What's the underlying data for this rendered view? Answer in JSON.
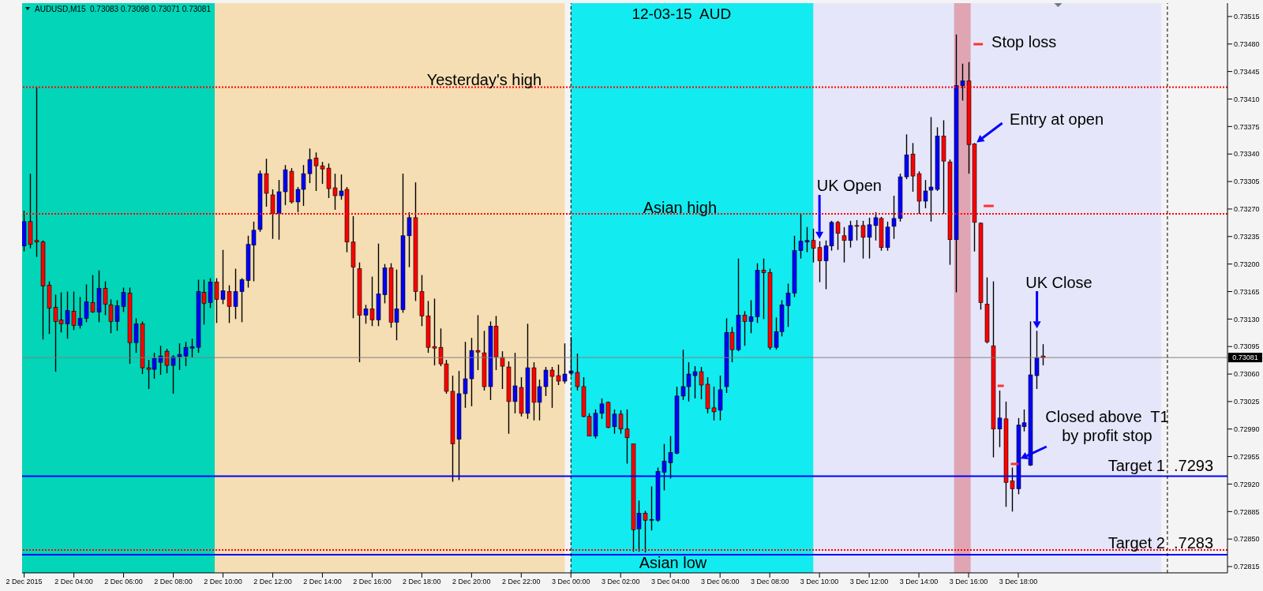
{
  "chart_data": {
    "type": "candlestick",
    "title": "12-03-15  AUD",
    "subtitle": "AUDUSD,M15  0.73083 0.73098 0.73071 0.73081",
    "x": [
      "2015-12-02T02:00",
      "2015-12-02T02:15",
      "2015-12-02T02:30",
      "2015-12-02T02:45",
      "2015-12-02T03:00",
      "2015-12-02T03:15",
      "2015-12-02T03:30",
      "2015-12-02T03:45",
      "2015-12-02T04:00",
      "2015-12-02T04:15",
      "2015-12-02T04:30",
      "2015-12-02T04:45",
      "2015-12-02T05:00",
      "2015-12-02T05:15",
      "2015-12-02T05:30",
      "2015-12-02T05:45",
      "2015-12-02T06:00",
      "2015-12-02T06:15",
      "2015-12-02T06:30",
      "2015-12-02T06:45",
      "2015-12-02T07:00",
      "2015-12-02T07:15",
      "2015-12-02T07:30",
      "2015-12-02T07:45",
      "2015-12-02T08:00",
      "2015-12-02T08:15",
      "2015-12-02T08:30",
      "2015-12-02T08:45",
      "2015-12-02T09:00",
      "2015-12-02T09:15",
      "2015-12-02T09:30",
      "2015-12-02T09:45",
      "2015-12-02T10:00",
      "2015-12-02T10:15",
      "2015-12-02T10:30",
      "2015-12-02T10:45",
      "2015-12-02T11:00",
      "2015-12-02T11:15",
      "2015-12-02T11:30",
      "2015-12-02T11:45",
      "2015-12-02T12:00",
      "2015-12-02T12:15",
      "2015-12-02T12:30",
      "2015-12-02T12:45",
      "2015-12-02T13:00",
      "2015-12-02T13:15",
      "2015-12-02T13:30",
      "2015-12-02T13:45",
      "2015-12-02T14:00",
      "2015-12-02T14:15",
      "2015-12-02T14:30",
      "2015-12-02T14:45",
      "2015-12-02T15:00",
      "2015-12-02T15:15",
      "2015-12-02T15:30",
      "2015-12-02T15:45",
      "2015-12-02T16:00",
      "2015-12-02T16:15",
      "2015-12-02T16:30",
      "2015-12-02T16:45",
      "2015-12-02T17:00",
      "2015-12-02T17:15",
      "2015-12-02T17:30",
      "2015-12-02T17:45",
      "2015-12-02T18:00",
      "2015-12-02T18:15",
      "2015-12-02T18:30",
      "2015-12-02T18:45",
      "2015-12-02T19:00",
      "2015-12-02T19:15",
      "2015-12-02T19:30",
      "2015-12-02T19:45",
      "2015-12-02T20:00",
      "2015-12-02T20:15",
      "2015-12-02T20:30",
      "2015-12-02T20:45",
      "2015-12-02T21:00",
      "2015-12-02T21:15",
      "2015-12-02T21:30",
      "2015-12-02T21:45",
      "2015-12-02T22:00",
      "2015-12-02T22:15",
      "2015-12-02T22:30",
      "2015-12-02T22:45",
      "2015-12-02T23:00",
      "2015-12-02T23:15",
      "2015-12-02T23:30",
      "2015-12-02T23:45",
      "2015-12-03T00:00",
      "2015-12-03T00:15",
      "2015-12-03T00:30",
      "2015-12-03T00:45",
      "2015-12-03T01:00",
      "2015-12-03T01:15",
      "2015-12-03T01:30",
      "2015-12-03T01:45",
      "2015-12-03T02:00",
      "2015-12-03T02:15",
      "2015-12-03T02:30",
      "2015-12-03T02:45",
      "2015-12-03T03:00",
      "2015-12-03T03:15",
      "2015-12-03T03:30",
      "2015-12-03T03:45",
      "2015-12-03T04:00",
      "2015-12-03T04:15",
      "2015-12-03T04:30",
      "2015-12-03T04:45",
      "2015-12-03T05:00",
      "2015-12-03T05:15",
      "2015-12-03T05:30",
      "2015-12-03T05:45",
      "2015-12-03T06:00",
      "2015-12-03T06:15",
      "2015-12-03T06:30",
      "2015-12-03T06:45",
      "2015-12-03T07:00",
      "2015-12-03T07:15",
      "2015-12-03T07:30",
      "2015-12-03T07:45",
      "2015-12-03T08:00",
      "2015-12-03T08:15",
      "2015-12-03T08:30",
      "2015-12-03T08:45",
      "2015-12-03T09:00",
      "2015-12-03T09:15",
      "2015-12-03T09:30",
      "2015-12-03T09:45",
      "2015-12-03T10:00",
      "2015-12-03T10:15",
      "2015-12-03T10:30",
      "2015-12-03T10:45",
      "2015-12-03T11:00",
      "2015-12-03T11:15",
      "2015-12-03T11:30",
      "2015-12-03T11:45",
      "2015-12-03T12:00",
      "2015-12-03T12:15",
      "2015-12-03T12:30",
      "2015-12-03T12:45",
      "2015-12-03T13:00",
      "2015-12-03T13:15",
      "2015-12-03T13:30",
      "2015-12-03T13:45",
      "2015-12-03T14:00",
      "2015-12-03T14:15",
      "2015-12-03T14:30",
      "2015-12-03T14:45",
      "2015-12-03T15:00",
      "2015-12-03T15:15",
      "2015-12-03T15:30",
      "2015-12-03T15:45",
      "2015-12-03T16:00",
      "2015-12-03T16:15",
      "2015-12-03T16:30",
      "2015-12-03T16:45",
      "2015-12-03T17:00",
      "2015-12-03T17:15",
      "2015-12-03T17:30",
      "2015-12-03T17:45",
      "2015-12-03T18:00",
      "2015-12-03T18:15",
      "2015-12-03T18:30",
      "2015-12-03T18:45",
      "2015-12-03T19:00"
    ],
    "ohlc": [
      [
        0.73223,
        0.73268,
        0.73216,
        0.73254
      ],
      [
        0.73254,
        0.73315,
        0.7322,
        0.73225
      ],
      [
        0.7323,
        0.73425,
        0.73209,
        0.73228
      ],
      [
        0.73228,
        0.7323,
        0.73104,
        0.73172
      ],
      [
        0.73173,
        0.73178,
        0.73111,
        0.73144
      ],
      [
        0.73145,
        0.73161,
        0.73063,
        0.73127
      ],
      [
        0.73129,
        0.73164,
        0.73113,
        0.73124
      ],
      [
        0.73124,
        0.73165,
        0.73105,
        0.73141
      ],
      [
        0.7314,
        0.73165,
        0.73116,
        0.73122
      ],
      [
        0.73122,
        0.73158,
        0.73118,
        0.73131
      ],
      [
        0.73131,
        0.73174,
        0.73126,
        0.73152
      ],
      [
        0.73151,
        0.73186,
        0.73138,
        0.73139
      ],
      [
        0.73139,
        0.73192,
        0.73126,
        0.73169
      ],
      [
        0.73169,
        0.73178,
        0.73135,
        0.73149
      ],
      [
        0.73148,
        0.73155,
        0.73112,
        0.73127
      ],
      [
        0.73127,
        0.73154,
        0.73115,
        0.73147
      ],
      [
        0.73146,
        0.7317,
        0.73139,
        0.73164
      ],
      [
        0.73163,
        0.7317,
        0.73073,
        0.731
      ],
      [
        0.731,
        0.73131,
        0.73087,
        0.73124
      ],
      [
        0.73124,
        0.73127,
        0.7306,
        0.73068
      ],
      [
        0.73068,
        0.73078,
        0.73041,
        0.73066
      ],
      [
        0.73066,
        0.73087,
        0.73054,
        0.7308
      ],
      [
        0.73075,
        0.73096,
        0.73059,
        0.73083
      ],
      [
        0.73089,
        0.73092,
        0.73061,
        0.73071
      ],
      [
        0.73071,
        0.73084,
        0.73035,
        0.73082
      ],
      [
        0.73082,
        0.73099,
        0.73065,
        0.73085
      ],
      [
        0.73083,
        0.73101,
        0.7307,
        0.73094
      ],
      [
        0.73093,
        0.73105,
        0.73081,
        0.73095
      ],
      [
        0.73094,
        0.7318,
        0.73087,
        0.73165
      ],
      [
        0.73164,
        0.7318,
        0.73123,
        0.7315
      ],
      [
        0.73151,
        0.73182,
        0.73144,
        0.73177
      ],
      [
        0.73177,
        0.73182,
        0.73125,
        0.73155
      ],
      [
        0.73155,
        0.73218,
        0.73149,
        0.73166
      ],
      [
        0.73165,
        0.73173,
        0.73125,
        0.73146
      ],
      [
        0.73146,
        0.73194,
        0.7313,
        0.73165
      ],
      [
        0.73165,
        0.73182,
        0.73126,
        0.7318
      ],
      [
        0.73179,
        0.73236,
        0.7317,
        0.73225
      ],
      [
        0.73224,
        0.73254,
        0.73178,
        0.73243
      ],
      [
        0.73244,
        0.73319,
        0.73241,
        0.73315
      ],
      [
        0.73315,
        0.73334,
        0.73273,
        0.7329
      ],
      [
        0.73288,
        0.73295,
        0.73232,
        0.73264
      ],
      [
        0.73264,
        0.73307,
        0.73231,
        0.73292
      ],
      [
        0.73292,
        0.73326,
        0.73275,
        0.7332
      ],
      [
        0.73318,
        0.73322,
        0.73277,
        0.73279
      ],
      [
        0.73279,
        0.73298,
        0.73266,
        0.73295
      ],
      [
        0.73295,
        0.73326,
        0.73274,
        0.73315
      ],
      [
        0.73315,
        0.73347,
        0.73303,
        0.73333
      ],
      [
        0.73335,
        0.73342,
        0.73293,
        0.73325
      ],
      [
        0.73325,
        0.7333,
        0.73302,
        0.73321
      ],
      [
        0.73322,
        0.73328,
        0.73284,
        0.73296
      ],
      [
        0.73297,
        0.73315,
        0.73269,
        0.73287
      ],
      [
        0.73287,
        0.73314,
        0.73282,
        0.73293
      ],
      [
        0.73295,
        0.73298,
        0.73215,
        0.73228
      ],
      [
        0.73228,
        0.73261,
        0.73131,
        0.73196
      ],
      [
        0.73194,
        0.73202,
        0.73075,
        0.73135
      ],
      [
        0.73135,
        0.73148,
        0.73124,
        0.73143
      ],
      [
        0.73143,
        0.73184,
        0.73121,
        0.73129
      ],
      [
        0.73129,
        0.73226,
        0.73121,
        0.73162
      ],
      [
        0.73161,
        0.732,
        0.7315,
        0.73195
      ],
      [
        0.73195,
        0.73201,
        0.73119,
        0.73126
      ],
      [
        0.73126,
        0.73193,
        0.73103,
        0.73143
      ],
      [
        0.73142,
        0.73315,
        0.73138,
        0.73236
      ],
      [
        0.73236,
        0.73266,
        0.73196,
        0.73259
      ],
      [
        0.73259,
        0.73304,
        0.73153,
        0.73165
      ],
      [
        0.73165,
        0.73186,
        0.73121,
        0.73134
      ],
      [
        0.73134,
        0.73153,
        0.73087,
        0.73094
      ],
      [
        0.73095,
        0.73156,
        0.73071,
        0.73093
      ],
      [
        0.73094,
        0.73118,
        0.7307,
        0.73073
      ],
      [
        0.73073,
        0.73078,
        0.73035,
        0.73038
      ],
      [
        0.73038,
        0.73058,
        0.72923,
        0.72971
      ],
      [
        0.72977,
        0.73064,
        0.72925,
        0.73035
      ],
      [
        0.73035,
        0.73101,
        0.73017,
        0.73054
      ],
      [
        0.73054,
        0.73106,
        0.73019,
        0.7309
      ],
      [
        0.7309,
        0.73135,
        0.73065,
        0.73088
      ],
      [
        0.73087,
        0.73115,
        0.73039,
        0.73044
      ],
      [
        0.73044,
        0.73127,
        0.73027,
        0.73121
      ],
      [
        0.73121,
        0.73134,
        0.73065,
        0.73082
      ],
      [
        0.73081,
        0.73089,
        0.73041,
        0.7307
      ],
      [
        0.73069,
        0.73076,
        0.72984,
        0.73025
      ],
      [
        0.73025,
        0.73087,
        0.7301,
        0.73045
      ],
      [
        0.73043,
        0.73056,
        0.73006,
        0.7301
      ],
      [
        0.7301,
        0.73124,
        0.73003,
        0.73068
      ],
      [
        0.73068,
        0.73075,
        0.73001,
        0.73024
      ],
      [
        0.73024,
        0.73053,
        0.73001,
        0.73044
      ],
      [
        0.73044,
        0.73069,
        0.73032,
        0.73065
      ],
      [
        0.73065,
        0.73069,
        0.73017,
        0.73057
      ],
      [
        0.73058,
        0.73072,
        0.73046,
        0.73051
      ],
      [
        0.73051,
        0.73099,
        0.73048,
        0.7306
      ],
      [
        0.73061,
        0.73107,
        0.73058,
        0.73064
      ],
      [
        0.73062,
        0.73086,
        0.73039,
        0.73044
      ],
      [
        0.73044,
        0.73056,
        0.73005,
        0.73006
      ],
      [
        0.73006,
        0.7301,
        0.72981,
        0.72981
      ],
      [
        0.72981,
        0.73015,
        0.72978,
        0.7301
      ],
      [
        0.7301,
        0.73029,
        0.73003,
        0.73022
      ],
      [
        0.73024,
        0.73025,
        0.72991,
        0.72992
      ],
      [
        0.72993,
        0.73015,
        0.72984,
        0.73009
      ],
      [
        0.73009,
        0.73014,
        0.72984,
        0.7299
      ],
      [
        0.7299,
        0.73015,
        0.72946,
        0.72979
      ],
      [
        0.72971,
        0.72971,
        0.72834,
        0.72862
      ],
      [
        0.72863,
        0.72899,
        0.72834,
        0.72883
      ],
      [
        0.72883,
        0.72886,
        0.72833,
        0.72874
      ],
      [
        0.72874,
        0.72917,
        0.72861,
        0.72875
      ],
      [
        0.72874,
        0.72941,
        0.72872,
        0.72936
      ],
      [
        0.72935,
        0.72971,
        0.72912,
        0.72949
      ],
      [
        0.72947,
        0.72981,
        0.72927,
        0.7296
      ],
      [
        0.72959,
        0.73044,
        0.72958,
        0.73032
      ],
      [
        0.73032,
        0.73091,
        0.73027,
        0.73044
      ],
      [
        0.73044,
        0.73075,
        0.73025,
        0.7306
      ],
      [
        0.73058,
        0.7307,
        0.73029,
        0.73063
      ],
      [
        0.73063,
        0.73069,
        0.73028,
        0.73046
      ],
      [
        0.73047,
        0.73056,
        0.7301,
        0.73016
      ],
      [
        0.73017,
        0.73044,
        0.73001,
        0.73012
      ],
      [
        0.73014,
        0.73058,
        0.73001,
        0.7304
      ],
      [
        0.73044,
        0.73131,
        0.73036,
        0.73113
      ],
      [
        0.73113,
        0.7312,
        0.73075,
        0.73091
      ],
      [
        0.73091,
        0.73207,
        0.73089,
        0.73135
      ],
      [
        0.73135,
        0.7314,
        0.73096,
        0.73127
      ],
      [
        0.73127,
        0.73154,
        0.73112,
        0.73133
      ],
      [
        0.73133,
        0.73201,
        0.73125,
        0.73192
      ],
      [
        0.73192,
        0.73207,
        0.7313,
        0.73189
      ],
      [
        0.73189,
        0.73194,
        0.73091,
        0.73094
      ],
      [
        0.73094,
        0.73132,
        0.73091,
        0.73114
      ],
      [
        0.73114,
        0.73154,
        0.73108,
        0.73148
      ],
      [
        0.73147,
        0.73175,
        0.7312,
        0.73163
      ],
      [
        0.73163,
        0.73236,
        0.73158,
        0.73217
      ],
      [
        0.73217,
        0.73264,
        0.73207,
        0.73229
      ],
      [
        0.73228,
        0.73247,
        0.73215,
        0.7323
      ],
      [
        0.7323,
        0.73245,
        0.73202,
        0.7322
      ],
      [
        0.73221,
        0.73229,
        0.73177,
        0.73204
      ],
      [
        0.73204,
        0.7323,
        0.73168,
        0.73223
      ],
      [
        0.73223,
        0.73255,
        0.73217,
        0.73253
      ],
      [
        0.73253,
        0.73255,
        0.73218,
        0.73239
      ],
      [
        0.73236,
        0.73247,
        0.73202,
        0.7323
      ],
      [
        0.7323,
        0.73255,
        0.73221,
        0.73249
      ],
      [
        0.73249,
        0.73256,
        0.7323,
        0.73248
      ],
      [
        0.73249,
        0.73255,
        0.73207,
        0.73234
      ],
      [
        0.73234,
        0.73259,
        0.73207,
        0.7325
      ],
      [
        0.73249,
        0.73266,
        0.7323,
        0.73259
      ],
      [
        0.73258,
        0.7326,
        0.73217,
        0.73221
      ],
      [
        0.73221,
        0.73254,
        0.73217,
        0.73247
      ],
      [
        0.73248,
        0.73287,
        0.73232,
        0.73258
      ],
      [
        0.73258,
        0.73315,
        0.73254,
        0.73311
      ],
      [
        0.73311,
        0.73365,
        0.73308,
        0.73339
      ],
      [
        0.7334,
        0.73354,
        0.73292,
        0.73312
      ],
      [
        0.73315,
        0.73318,
        0.73264,
        0.7328
      ],
      [
        0.7328,
        0.73307,
        0.73271,
        0.73293
      ],
      [
        0.73294,
        0.73387,
        0.73254,
        0.73298
      ],
      [
        0.73295,
        0.73374,
        0.73293,
        0.73363
      ],
      [
        0.73363,
        0.73383,
        0.73264,
        0.73331
      ],
      [
        0.7333,
        0.73333,
        0.73199,
        0.73231
      ],
      [
        0.73231,
        0.73492,
        0.73164,
        0.73427
      ],
      [
        0.73427,
        0.73455,
        0.73408,
        0.73433
      ],
      [
        0.73433,
        0.73457,
        0.73315,
        0.73352
      ],
      [
        0.73353,
        0.73354,
        0.73216,
        0.73253
      ],
      [
        0.73252,
        0.73253,
        0.73142,
        0.73151
      ],
      [
        0.73149,
        0.73183,
        0.73099,
        0.73101
      ],
      [
        0.73096,
        0.73178,
        0.72954,
        0.7299
      ],
      [
        0.7299,
        0.73039,
        0.72967,
        0.73004
      ],
      [
        0.73003,
        0.73025,
        0.72891,
        0.72922
      ],
      [
        0.72924,
        0.72941,
        0.72885,
        0.72914
      ],
      [
        0.72914,
        0.73004,
        0.72907,
        0.72995
      ],
      [
        0.72993,
        0.73015,
        0.72987,
        0.72998
      ],
      [
        0.72944,
        0.73127,
        0.72943,
        0.73059
      ],
      [
        0.73058,
        0.73115,
        0.73041,
        0.73081
      ],
      [
        0.73083,
        0.73098,
        0.73071,
        0.73081
      ]
    ],
    "colors": [
      "#0000ff",
      "#ff0000",
      "#ff0000",
      "#ff0000",
      "#ff0000",
      "#ff0000",
      "#ff0000",
      "#0000ff",
      "#ff0000",
      "#0000ff",
      "#0000ff",
      "#ff0000",
      "#0000ff",
      "#ff0000",
      "#ff0000",
      "#0000ff",
      "#0000ff",
      "#ff0000",
      "#0000ff",
      "#ff0000",
      "#ff0000",
      "#0000ff",
      "#0000ff",
      "#ff0000",
      "#0000ff",
      "#0000ff",
      "#0000ff",
      "#0000ff",
      "#0000ff",
      "#ff0000",
      "#0000ff",
      "#ff0000",
      "#0000ff",
      "#ff0000",
      "#0000ff",
      "#0000ff",
      "#0000ff",
      "#0000ff",
      "#0000ff",
      "#ff0000",
      "#ff0000",
      "#0000ff",
      "#0000ff",
      "#ff0000",
      "#0000ff",
      "#0000ff",
      "#0000ff",
      "#ff0000",
      "#ff0000",
      "#ff0000",
      "#ff0000",
      "#0000ff",
      "#ff0000",
      "#ff0000",
      "#ff0000",
      "#0000ff",
      "#ff0000",
      "#0000ff",
      "#0000ff",
      "#ff0000",
      "#0000ff",
      "#0000ff",
      "#0000ff",
      "#ff0000",
      "#ff0000",
      "#ff0000",
      "#ff0000",
      "#ff0000",
      "#ff0000",
      "#ff0000",
      "#0000ff",
      "#0000ff",
      "#0000ff",
      "#ff0000",
      "#ff0000",
      "#0000ff",
      "#ff0000",
      "#ff0000",
      "#ff0000",
      "#0000ff",
      "#ff0000",
      "#0000ff",
      "#ff0000",
      "#0000ff",
      "#0000ff",
      "#ff0000",
      "#ff0000",
      "#0000ff",
      "#0000ff",
      "#ff0000",
      "#ff0000",
      "#ff0000",
      "#0000ff",
      "#0000ff",
      "#ff0000",
      "#0000ff",
      "#ff0000",
      "#ff0000",
      "#ff0000",
      "#0000ff",
      "#ff0000",
      "#0000ff",
      "#0000ff",
      "#0000ff",
      "#0000ff",
      "#0000ff",
      "#0000ff",
      "#0000ff",
      "#0000ff",
      "#ff0000",
      "#ff0000",
      "#ff0000",
      "#0000ff",
      "#0000ff",
      "#ff0000",
      "#0000ff",
      "#ff0000",
      "#0000ff",
      "#0000ff",
      "#ff0000",
      "#ff0000",
      "#0000ff",
      "#0000ff",
      "#0000ff",
      "#0000ff",
      "#0000ff",
      "#0000ff",
      "#ff0000",
      "#ff0000",
      "#0000ff",
      "#0000ff",
      "#ff0000",
      "#ff0000",
      "#0000ff",
      "#ff0000",
      "#ff0000",
      "#0000ff",
      "#0000ff",
      "#ff0000",
      "#0000ff",
      "#0000ff",
      "#0000ff",
      "#0000ff",
      "#ff0000",
      "#ff0000",
      "#0000ff",
      "#0000ff",
      "#0000ff",
      "#ff0000",
      "#ff0000",
      "#0000ff",
      "#0000ff",
      "#ff0000",
      "#ff0000",
      "#ff0000",
      "#ff0000",
      "#ff0000",
      "#0000ff",
      "#ff0000",
      "#ff0000",
      "#0000ff",
      "#0000ff",
      "#0000ff",
      "#0000ff",
      "#ff0000"
    ],
    "xlim": [
      "2015-12-02T01:55",
      "2015-12-04T02:25"
    ],
    "ylim": [
      0.72807,
      0.73532
    ],
    "xticks": [
      {
        "value": "2015-12-02T02:00",
        "label": "2 Dec 2015"
      },
      {
        "value": "2015-12-02T04:00",
        "label": "2 Dec 04:00"
      },
      {
        "value": "2015-12-02T06:00",
        "label": "2 Dec 06:00"
      },
      {
        "value": "2015-12-02T08:00",
        "label": "2 Dec 08:00"
      },
      {
        "value": "2015-12-02T10:00",
        "label": "2 Dec 10:00"
      },
      {
        "value": "2015-12-02T12:00",
        "label": "2 Dec 12:00"
      },
      {
        "value": "2015-12-02T14:00",
        "label": "2 Dec 14:00"
      },
      {
        "value": "2015-12-02T16:00",
        "label": "2 Dec 16:00"
      },
      {
        "value": "2015-12-02T18:00",
        "label": "2 Dec 18:00"
      },
      {
        "value": "2015-12-02T20:00",
        "label": "2 Dec 20:00"
      },
      {
        "value": "2015-12-02T22:00",
        "label": "2 Dec 22:00"
      },
      {
        "value": "2015-12-03T00:00",
        "label": "3 Dec 00:00"
      },
      {
        "value": "2015-12-03T02:00",
        "label": "3 Dec 02:00"
      },
      {
        "value": "2015-12-03T04:00",
        "label": "3 Dec 04:00"
      },
      {
        "value": "2015-12-03T06:00",
        "label": "3 Dec 06:00"
      },
      {
        "value": "2015-12-03T08:00",
        "label": "3 Dec 08:00"
      },
      {
        "value": "2015-12-03T10:00",
        "label": "3 Dec 10:00"
      },
      {
        "value": "2015-12-03T12:00",
        "label": "3 Dec 12:00"
      },
      {
        "value": "2015-12-03T14:00",
        "label": "3 Dec 14:00"
      },
      {
        "value": "2015-12-03T16:00",
        "label": "3 Dec 16:00"
      },
      {
        "value": "2015-12-03T18:00",
        "label": "3 Dec 18:00"
      }
    ],
    "yticks": [
      0.72815,
      {
        "value": 0.7285,
        "label": "0.72850"
      },
      0.72885,
      {
        "value": 0.7292,
        "label": "0.72920"
      },
      0.72955,
      {
        "value": 0.7299,
        "label": "0.72990"
      },
      0.73025,
      {
        "value": 0.7306,
        "label": "0.73060"
      },
      0.73095,
      {
        "value": 0.7313,
        "label": "0.73130"
      },
      0.73165,
      {
        "value": 0.732,
        "label": "0.73200"
      },
      0.73235,
      {
        "value": 0.7327,
        "label": "0.73270"
      },
      0.73305,
      {
        "value": 0.7334,
        "label": "0.73340"
      },
      0.73375,
      {
        "value": 0.7341,
        "label": "0.73410"
      },
      0.73445,
      {
        "value": 0.7348,
        "label": "0.73480"
      },
      0.73515
    ],
    "bands": [
      {
        "axis": "x",
        "from": "2015-12-02T01:55",
        "to": "2015-12-02T09:40",
        "color": "#02d5b8"
      },
      {
        "axis": "x",
        "from": "2015-12-02T09:40",
        "to": "2015-12-02T23:45",
        "color": "#f5deb3"
      },
      {
        "axis": "x",
        "from": "2015-12-03T00:00",
        "to": "2015-12-03T23:45",
        "color": "#e6e6fa"
      },
      {
        "axis": "x",
        "from": "2015-12-03T00:00",
        "to": "2015-12-03T09:45",
        "color": "#12ecf0"
      },
      {
        "axis": "x",
        "from": "2015-12-03T15:25",
        "to": "2015-12-03T16:05",
        "color": "#e0a5b3"
      }
    ],
    "ref_lines": [
      {
        "axis": "y",
        "value": 0.73425,
        "color": "#ff0000",
        "line_style": "dotted"
      },
      {
        "axis": "y",
        "value": 0.73264,
        "color": "#ff0000",
        "line_style": "dotted"
      },
      {
        "axis": "y",
        "value": 0.72836,
        "color": "#ff0000",
        "line_style": "dotted"
      },
      {
        "axis": "y",
        "value": 0.7293,
        "color": "#0000ff",
        "line_style": "solid"
      },
      {
        "axis": "y",
        "value": 0.7283,
        "color": "#0000ff",
        "line_style": "solid"
      },
      {
        "axis": "y",
        "value": 0.73081,
        "color": "#808080",
        "line_style": "solid",
        "label": "0.73081"
      },
      {
        "axis": "x",
        "value": "2015-12-03T00:00",
        "color": "#000000",
        "line_style": "dashed"
      },
      {
        "axis": "x",
        "value": "2015-12-04T00:00",
        "color": "#000000",
        "line_style": "dashed"
      }
    ],
    "annotations": [
      "Yesterday's high",
      "Asian high",
      "Asian low",
      {
        "text": "UK Open",
        "x": "2015-12-03T10:00",
        "y": 0.73229
      },
      {
        "text": "Entry at open",
        "x": "2015-12-03T16:15",
        "y": 0.73353
      },
      "Stop loss",
      {
        "text": "UK Close",
        "x": "2015-12-03T18:45",
        "y": 0.73115
      },
      {
        "text": "Closed above  T1\nby profit stop",
        "x": "2015-12-03T18:00",
        "y": 0.72951
      },
      "Target 1  .7293",
      "Target 2  .7283"
    ]
  }
}
